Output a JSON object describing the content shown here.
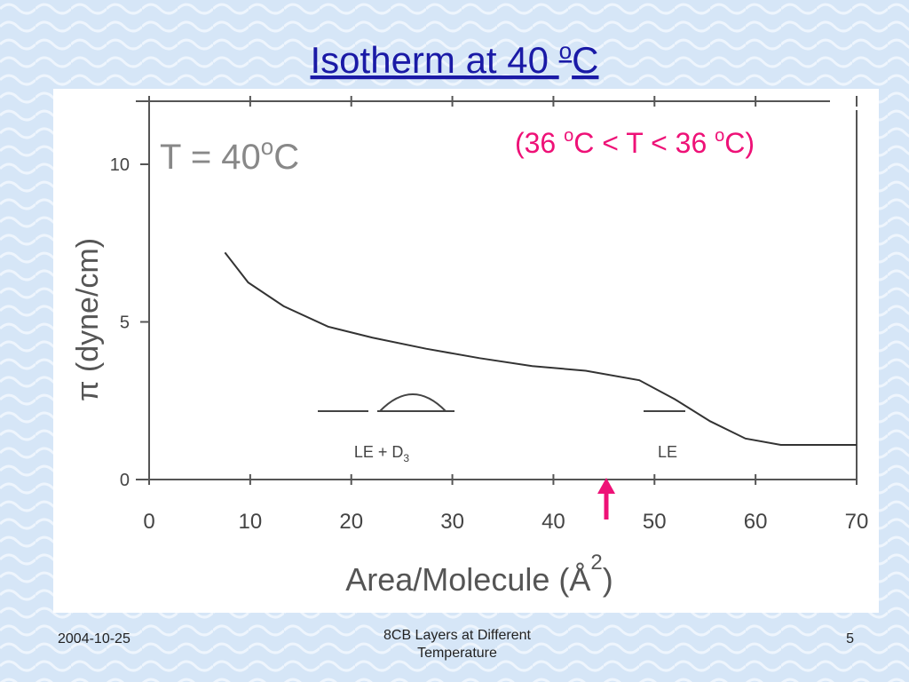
{
  "slide": {
    "title": [
      "Isotherm at 40 ",
      "o",
      "C"
    ],
    "footer": {
      "date": "2004-10-25",
      "topic": "8CB Layers at Different Temperature",
      "page": "5"
    }
  },
  "chart_data": {
    "type": "line",
    "annotations": {
      "temperature": [
        "T = 40",
        "o",
        "C"
      ],
      "range": [
        "(36 ",
        "o",
        "C < T < 36 ",
        "o",
        "C)"
      ],
      "le_d3": [
        "LE + D",
        "3"
      ],
      "le": "LE"
    },
    "x_label": [
      "Area/Molecule (Å",
      "2",
      ")"
    ],
    "y_label": "π (dyne/cm)",
    "x": [
      7.5,
      9.8,
      13.3,
      17.7,
      22.1,
      27.4,
      32.7,
      37.9,
      43.2,
      48.5,
      52.0,
      55.5,
      59.0,
      62.5,
      70
    ],
    "values": [
      7.2,
      6.25,
      5.5,
      4.85,
      4.5,
      4.15,
      3.85,
      3.6,
      3.45,
      3.15,
      2.55,
      1.85,
      1.3,
      1.1,
      1.1
    ],
    "color": "#333333",
    "xlim": [
      0,
      70
    ],
    "xticks": [
      0,
      10,
      20,
      30,
      40,
      50,
      60,
      70
    ],
    "ylim": [
      0,
      12
    ],
    "yticks": [
      0,
      5,
      10
    ],
    "grid": false
  }
}
